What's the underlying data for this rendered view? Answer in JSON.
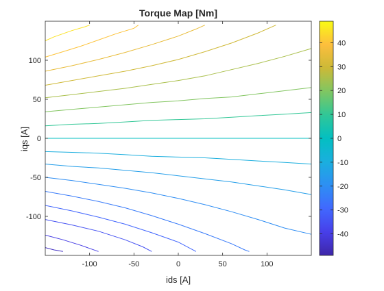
{
  "chart_data": {
    "type": "contour",
    "title": "Torque Map [Nm]",
    "xlabel": "ids [A]",
    "ylabel": "iqs [A]",
    "xlim": [
      -150,
      150
    ],
    "ylim": [
      -150,
      150
    ],
    "xticks": [
      -100,
      -50,
      0,
      50,
      100
    ],
    "yticks": [
      -100,
      -50,
      0,
      50,
      100
    ],
    "colorbar": {
      "clim": [
        -49,
        49
      ],
      "ticks": [
        -40,
        -30,
        -20,
        -10,
        0,
        10,
        20,
        30,
        40
      ],
      "colormap": "parula"
    },
    "grid": false,
    "contours": [
      {
        "level": 45,
        "points": [
          [
            -150,
            125
          ],
          [
            -140,
            130
          ],
          [
            -120,
            138
          ],
          [
            -105,
            143
          ],
          [
            -100,
            145
          ]
        ]
      },
      {
        "level": 40,
        "points": [
          [
            -150,
            104
          ],
          [
            -130,
            111
          ],
          [
            -110,
            118
          ],
          [
            -90,
            126
          ],
          [
            -70,
            134
          ],
          [
            -50,
            141
          ],
          [
            -45,
            145
          ]
        ]
      },
      {
        "level": 35,
        "points": [
          [
            -150,
            86
          ],
          [
            -120,
            93
          ],
          [
            -90,
            101
          ],
          [
            -60,
            110
          ],
          [
            -30,
            120
          ],
          [
            0,
            131
          ],
          [
            20,
            140
          ],
          [
            30,
            145
          ]
        ]
      },
      {
        "level": 30,
        "points": [
          [
            -150,
            68
          ],
          [
            -120,
            74
          ],
          [
            -90,
            80
          ],
          [
            -60,
            86
          ],
          [
            -30,
            93
          ],
          [
            0,
            101
          ],
          [
            30,
            111
          ],
          [
            60,
            122
          ],
          [
            90,
            135
          ],
          [
            110,
            145
          ]
        ]
      },
      {
        "level": 25,
        "points": [
          [
            -150,
            52
          ],
          [
            -120,
            56
          ],
          [
            -90,
            60
          ],
          [
            -60,
            64
          ],
          [
            -30,
            69
          ],
          [
            0,
            74
          ],
          [
            30,
            80
          ],
          [
            60,
            88
          ],
          [
            90,
            96
          ],
          [
            120,
            105
          ],
          [
            150,
            115
          ]
        ]
      },
      {
        "level": 20,
        "points": [
          [
            -150,
            34
          ],
          [
            -120,
            37
          ],
          [
            -90,
            40
          ],
          [
            -60,
            43
          ],
          [
            -30,
            46
          ],
          [
            0,
            48
          ],
          [
            30,
            51
          ],
          [
            60,
            53
          ],
          [
            90,
            57
          ],
          [
            120,
            61
          ],
          [
            150,
            65
          ]
        ]
      },
      {
        "level": 10,
        "points": [
          [
            -150,
            16
          ],
          [
            -120,
            18
          ],
          [
            -90,
            19
          ],
          [
            -60,
            21
          ],
          [
            -30,
            23
          ],
          [
            0,
            24
          ],
          [
            30,
            25
          ],
          [
            60,
            27
          ],
          [
            90,
            29
          ],
          [
            120,
            31
          ],
          [
            150,
            33
          ]
        ]
      },
      {
        "level": 0,
        "points": [
          [
            -150,
            0
          ],
          [
            -75,
            0
          ],
          [
            0,
            0
          ],
          [
            75,
            0
          ],
          [
            150,
            0
          ]
        ]
      },
      {
        "level": -10,
        "points": [
          [
            -150,
            -17
          ],
          [
            -120,
            -18
          ],
          [
            -90,
            -19
          ],
          [
            -60,
            -21
          ],
          [
            -30,
            -23
          ],
          [
            0,
            -24
          ],
          [
            30,
            -25
          ],
          [
            60,
            -27
          ],
          [
            90,
            -29
          ],
          [
            120,
            -31
          ],
          [
            150,
            -33
          ]
        ]
      },
      {
        "level": -15,
        "points": [
          [
            -150,
            -33
          ],
          [
            -120,
            -36
          ],
          [
            -90,
            -38
          ],
          [
            -60,
            -41
          ],
          [
            -30,
            -44
          ],
          [
            0,
            -48
          ],
          [
            30,
            -52
          ],
          [
            60,
            -56
          ],
          [
            90,
            -61
          ],
          [
            120,
            -66
          ],
          [
            150,
            -72
          ]
        ]
      },
      {
        "level": -20,
        "points": [
          [
            -150,
            -50
          ],
          [
            -120,
            -54
          ],
          [
            -90,
            -59
          ],
          [
            -60,
            -64
          ],
          [
            -30,
            -70
          ],
          [
            0,
            -77
          ],
          [
            30,
            -85
          ],
          [
            60,
            -94
          ],
          [
            90,
            -104
          ],
          [
            120,
            -115
          ],
          [
            150,
            -123
          ]
        ]
      },
      {
        "level": -25,
        "points": [
          [
            -150,
            -68
          ],
          [
            -120,
            -74
          ],
          [
            -90,
            -81
          ],
          [
            -60,
            -89
          ],
          [
            -30,
            -99
          ],
          [
            0,
            -110
          ],
          [
            30,
            -122
          ],
          [
            60,
            -135
          ],
          [
            75,
            -143
          ],
          [
            80,
            -145
          ]
        ]
      },
      {
        "level": -30,
        "points": [
          [
            -150,
            -86
          ],
          [
            -120,
            -93
          ],
          [
            -90,
            -101
          ],
          [
            -60,
            -110
          ],
          [
            -30,
            -121
          ],
          [
            0,
            -133
          ],
          [
            20,
            -145
          ]
        ]
      },
      {
        "level": -35,
        "points": [
          [
            -150,
            -104
          ],
          [
            -120,
            -111
          ],
          [
            -90,
            -119
          ],
          [
            -60,
            -130
          ],
          [
            -40,
            -139
          ],
          [
            -30,
            -145
          ]
        ]
      },
      {
        "level": -40,
        "points": [
          [
            -150,
            -124
          ],
          [
            -130,
            -130
          ],
          [
            -110,
            -137
          ],
          [
            -90,
            -145
          ]
        ]
      },
      {
        "level": -45,
        "points": [
          [
            -150,
            -140
          ],
          [
            -140,
            -143
          ],
          [
            -130,
            -145
          ]
        ]
      }
    ]
  }
}
